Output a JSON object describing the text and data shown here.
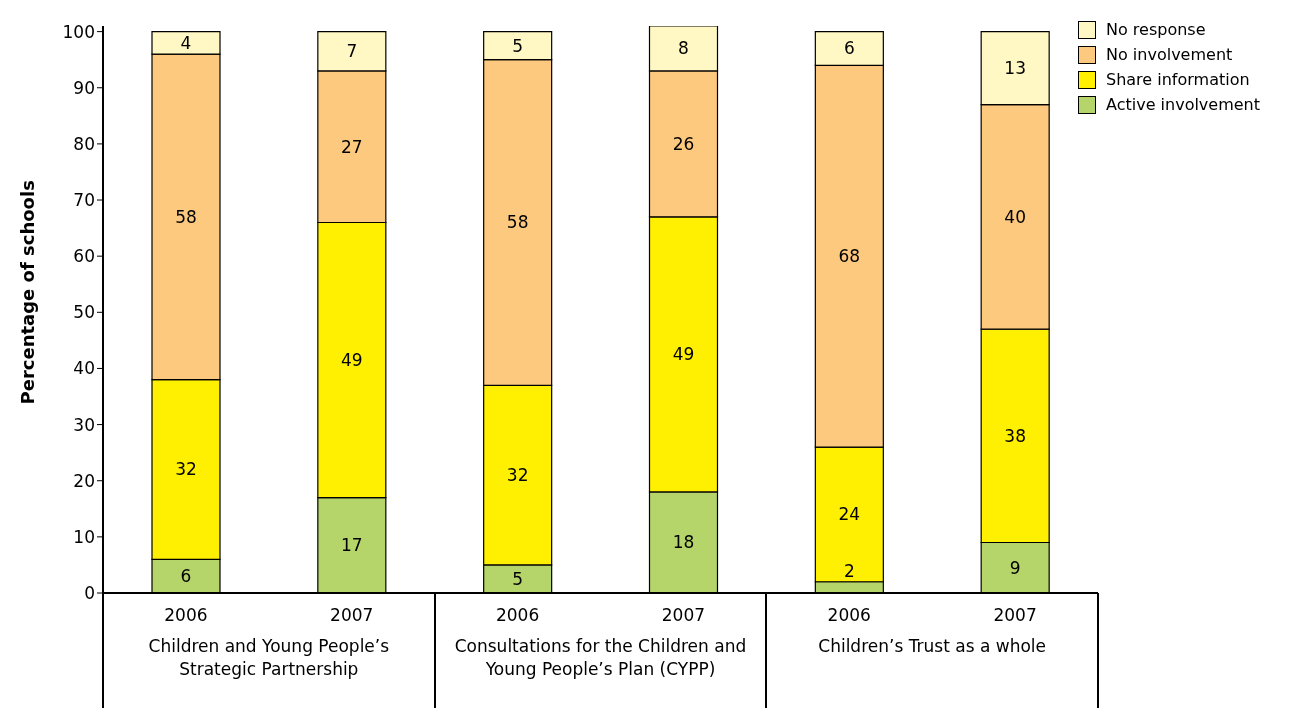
{
  "chart_data": {
    "type": "bar",
    "stacked": true,
    "ylabel": "Percentage of schools",
    "categories": [
      "2006",
      "2007",
      "2006",
      "2007",
      "2006",
      "2007"
    ],
    "series": [
      {
        "name": "Active involvement",
        "color": "#b5d46a",
        "values": [
          6,
          17,
          5,
          18,
          2,
          9
        ]
      },
      {
        "name": "Share information",
        "color": "#ffef00",
        "values": [
          32,
          49,
          32,
          49,
          24,
          38
        ]
      },
      {
        "name": "No involvement",
        "color": "#fdc97e",
        "values": [
          58,
          27,
          58,
          26,
          68,
          40
        ]
      },
      {
        "name": "No response",
        "color": "#fff8c4",
        "values": [
          4,
          7,
          5,
          8,
          6,
          13
        ]
      }
    ],
    "annotations": [
      "Children and Young People’s Strategic Partnership",
      "Consultations for the Children and Young People’s Plan (CYPP)",
      "Children’s Trust as a whole"
    ],
    "ylim": [
      0,
      101
    ],
    "yticks": [
      0,
      10,
      20,
      30,
      40,
      50,
      60,
      70,
      80,
      90,
      100
    ],
    "data_labels": true,
    "legend": "top right",
    "grid": false
  }
}
